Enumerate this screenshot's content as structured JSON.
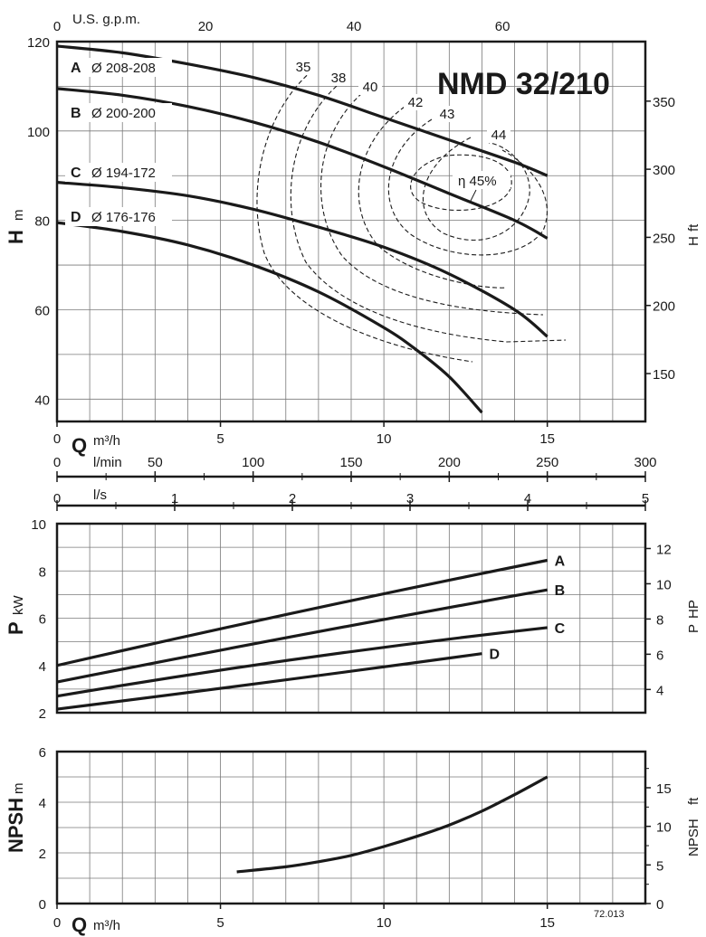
{
  "chart_data": [
    {
      "type": "line",
      "model": "NMD 32/210",
      "ylabel": "H",
      "ylabel_unit": "m",
      "y2label": "H",
      "y2label_unit": "ft",
      "xlabel": "Q",
      "xlabel_unit": "m³/h",
      "top_axis_label": "U.S. g.p.m.",
      "xlim": [
        0,
        18
      ],
      "ylim": [
        35,
        120
      ],
      "y_ticks": [
        40,
        60,
        80,
        100,
        120
      ],
      "x_ticks": [
        0,
        5,
        10,
        15
      ],
      "gpm_ticks": [
        0,
        20,
        40,
        60
      ],
      "ft_ticks": [
        150,
        200,
        250,
        300,
        350
      ],
      "series": [
        {
          "name": "A",
          "label": "Ø 208-208",
          "x": [
            0,
            2,
            4,
            6,
            8,
            10,
            12,
            14,
            15
          ],
          "y": [
            119,
            117.5,
            115,
            112,
            108,
            103,
            98,
            93,
            90
          ]
        },
        {
          "name": "B",
          "label": "Ø 200-200",
          "x": [
            0,
            2,
            4,
            6,
            8,
            10,
            12,
            14,
            15
          ],
          "y": [
            109.5,
            108,
            105.5,
            102,
            97.5,
            92,
            86,
            80,
            76
          ]
        },
        {
          "name": "C",
          "label": "Ø 194-172",
          "x": [
            0,
            2,
            4,
            6,
            8,
            10,
            12,
            14,
            15
          ],
          "y": [
            88.5,
            87.3,
            85.5,
            82.5,
            78.5,
            74,
            68,
            60,
            54
          ]
        },
        {
          "name": "D",
          "label": "Ø 176-176",
          "x": [
            0,
            2,
            4,
            6,
            8,
            10,
            11,
            12,
            13
          ],
          "y": [
            79.5,
            77.5,
            74.5,
            70,
            64,
            56,
            51,
            45,
            37
          ]
        }
      ],
      "efficiency_labels": [
        "35",
        "38",
        "40",
        "42",
        "43",
        "44"
      ],
      "efficiency_max_label": "η 45%"
    },
    {
      "type": "line",
      "ylabel": "P",
      "ylabel_unit": "kW",
      "y2label": "P",
      "y2label_unit": "HP",
      "xlabel_secondary": [
        {
          "unit": "l/min",
          "ticks": [
            0,
            50,
            100,
            150,
            200,
            250,
            300
          ]
        },
        {
          "unit": "l/s",
          "ticks": [
            0,
            1,
            2,
            3,
            4,
            5
          ]
        }
      ],
      "xlim": [
        0,
        18
      ],
      "ylim": [
        2,
        10
      ],
      "y_ticks": [
        2,
        4,
        6,
        8,
        10
      ],
      "hp_ticks": [
        4,
        6,
        8,
        10,
        12
      ],
      "series": [
        {
          "name": "A",
          "x": [
            0,
            15
          ],
          "y": [
            4.0,
            8.45
          ],
          "mid": 6.3
        },
        {
          "name": "B",
          "x": [
            0,
            15
          ],
          "y": [
            3.3,
            7.2
          ],
          "mid": 5.3
        },
        {
          "name": "C",
          "x": [
            0,
            15
          ],
          "y": [
            2.7,
            5.6
          ],
          "mid": 4.3
        },
        {
          "name": "D",
          "x": [
            0,
            13
          ],
          "y": [
            2.15,
            4.5
          ],
          "mid": 3.3
        }
      ]
    },
    {
      "type": "line",
      "ylabel": "NPSH",
      "ylabel_unit": "m",
      "y2label": "NPSH",
      "y2label_unit": "ft",
      "xlabel": "Q",
      "xlabel_unit": "m³/h",
      "xlim": [
        0,
        18
      ],
      "ylim": [
        0,
        6
      ],
      "y_ticks": [
        0,
        2,
        4,
        6
      ],
      "x_ticks": [
        0,
        5,
        10,
        15
      ],
      "ft_ticks": [
        0,
        5,
        10,
        15
      ],
      "series": [
        {
          "name": "NPSH",
          "x": [
            5.5,
            7,
            8,
            9,
            10,
            11,
            12,
            13,
            14,
            15
          ],
          "y": [
            1.25,
            1.45,
            1.65,
            1.9,
            2.25,
            2.65,
            3.1,
            3.65,
            4.3,
            5.0
          ]
        }
      ]
    }
  ],
  "code": "72.013"
}
